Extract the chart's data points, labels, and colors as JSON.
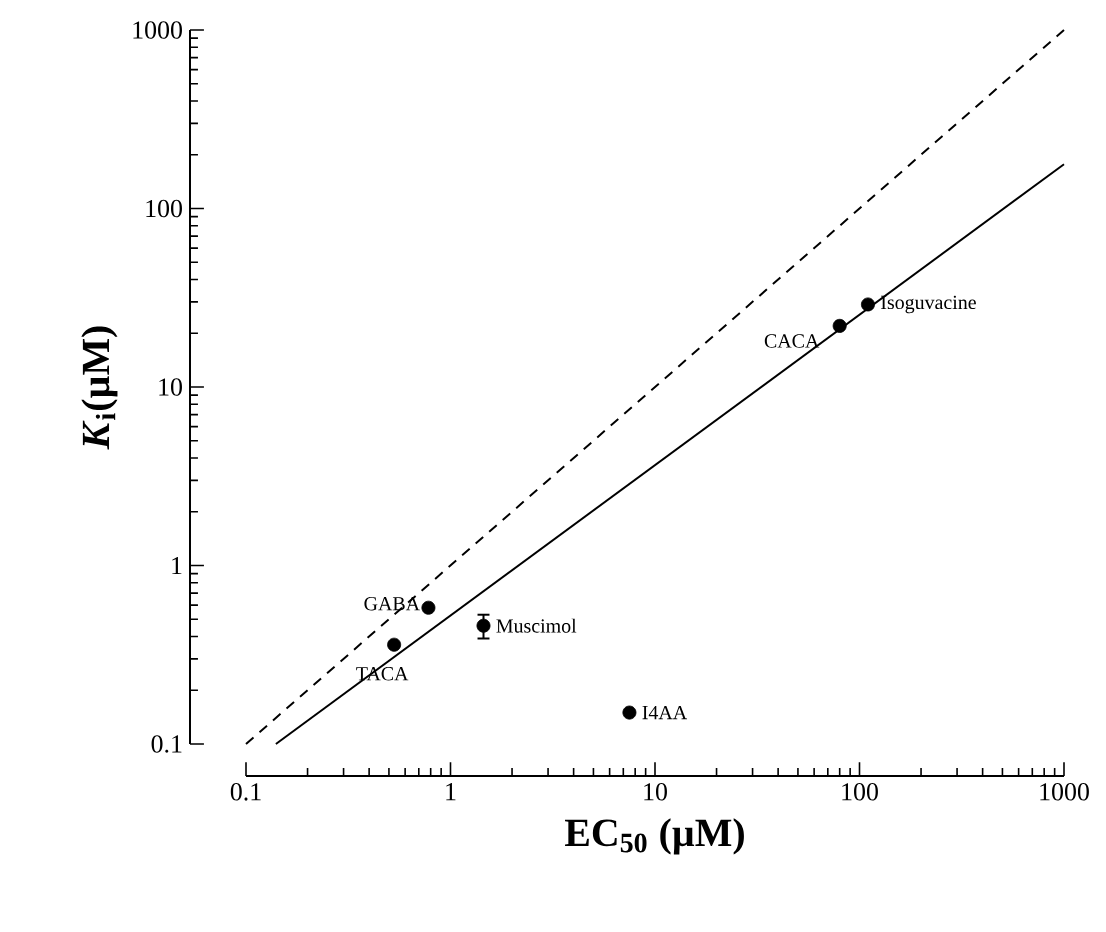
{
  "chart_data": {
    "type": "scatter",
    "xlabel": "EC$_{50}$ (µM)",
    "ylabel": "*K*$_{i}$(µM)",
    "log": "xy",
    "xlim": [
      0.1,
      1000
    ],
    "ylim": [
      0.1,
      1000
    ],
    "xticks": [
      0.1,
      1,
      10,
      100,
      1000
    ],
    "yticks": [
      0.1,
      1,
      10,
      100,
      1000
    ],
    "series": [
      {
        "color": "#000000",
        "marker": "circle",
        "x": [
          0.78,
          0.53,
          1.45,
          7.5,
          80,
          110
        ],
        "values": [
          0.58,
          0.36,
          0.46,
          0.15,
          22,
          29
        ],
        "errors": [
          null,
          null,
          0.07,
          null,
          null,
          null
        ]
      },
      {
        "type": "line",
        "color": "#000000",
        "line_style": "dashed",
        "marker": "none",
        "x": [
          0.1,
          1000
        ],
        "values": [
          0.1,
          1000
        ]
      },
      {
        "type": "line",
        "color": "#000000",
        "line_style": "solid",
        "marker": "none",
        "x": [
          0.14,
          1000
        ],
        "values": [
          0.1,
          177
        ]
      }
    ],
    "annotations": [
      {
        "text": "GABA",
        "x": 0.78,
        "y": 0.58
      },
      {
        "text": "TACA",
        "x": 0.53,
        "y": 0.36
      },
      {
        "text": "Muscimol",
        "x": 1.45,
        "y": 0.46
      },
      {
        "text": "I4AA",
        "x": 7.5,
        "y": 0.15
      },
      {
        "text": "CACA",
        "x": 80,
        "y": 22
      },
      {
        "text": "Isoguvacine",
        "x": 110,
        "y": 29
      }
    ]
  }
}
